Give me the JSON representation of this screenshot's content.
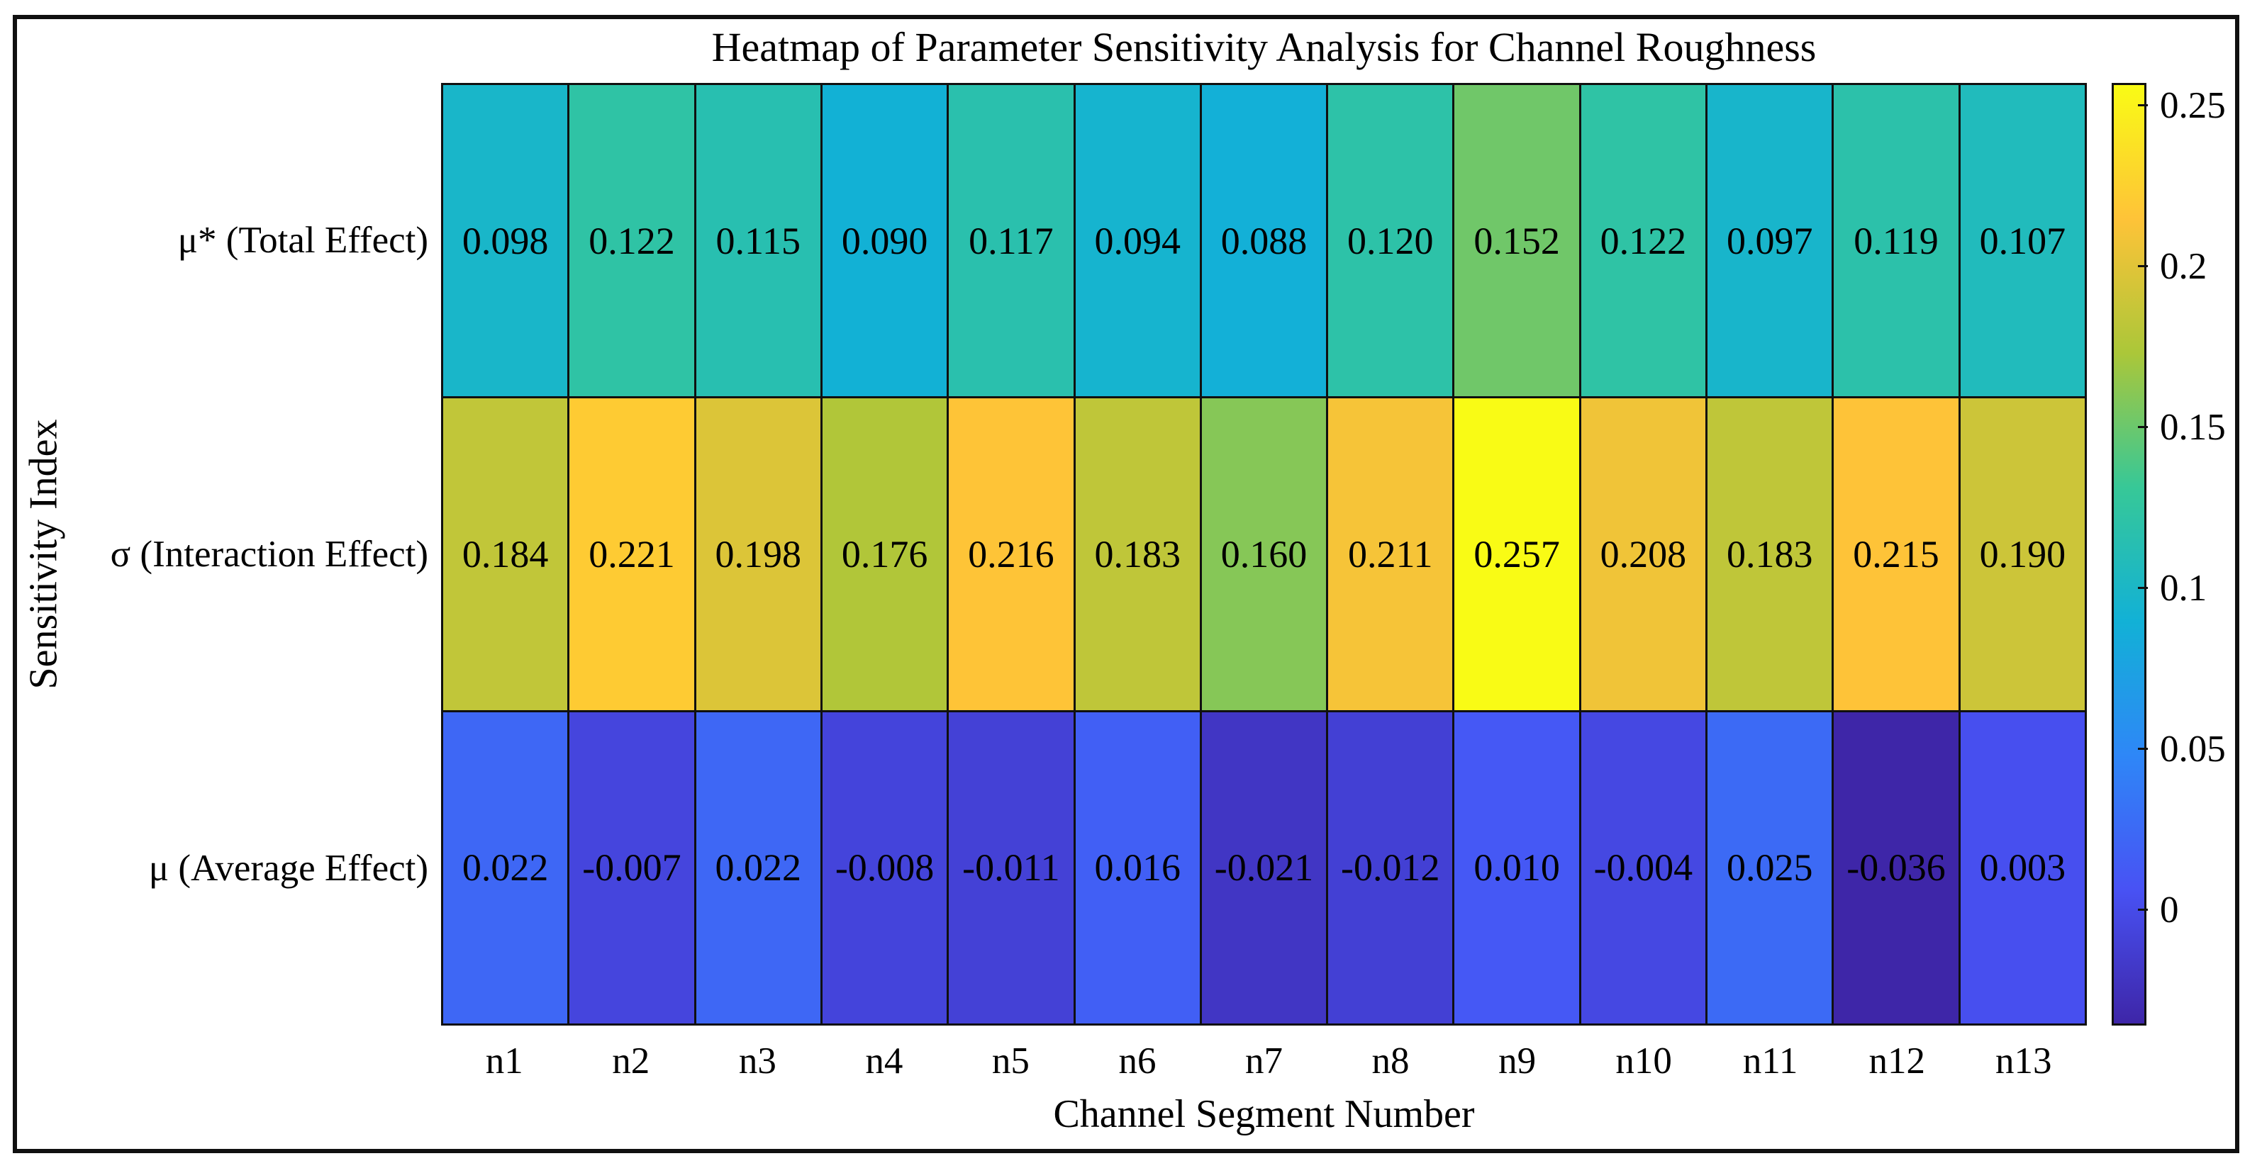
{
  "figure": {
    "background": "#ffffff",
    "frame_color": "#101010"
  },
  "chart_data": {
    "type": "heatmap",
    "title": "Heatmap of Parameter Sensitivity Analysis for Channel Roughness",
    "xlabel": "Channel Segment Number",
    "ylabel": "Sensitivity Index",
    "columns": [
      "n1",
      "n2",
      "n3",
      "n4",
      "n5",
      "n6",
      "n7",
      "n8",
      "n9",
      "n10",
      "n11",
      "n12",
      "n13"
    ],
    "rows": [
      "μ* (Total Effect)",
      "σ (Interaction Effect)",
      "μ (Average Effect)"
    ],
    "values": [
      [
        0.098,
        0.122,
        0.115,
        0.09,
        0.117,
        0.094,
        0.088,
        0.12,
        0.152,
        0.122,
        0.097,
        0.119,
        0.107
      ],
      [
        0.184,
        0.221,
        0.198,
        0.176,
        0.216,
        0.183,
        0.16,
        0.211,
        0.257,
        0.208,
        0.183,
        0.215,
        0.19
      ],
      [
        0.022,
        -0.007,
        0.022,
        -0.008,
        -0.011,
        0.016,
        -0.021,
        -0.012,
        0.01,
        -0.004,
        0.025,
        -0.036,
        0.003
      ]
    ],
    "value_decimals": 3,
    "colormap": "parula",
    "color_limits": [
      -0.036,
      0.257
    ],
    "grid_on": true,
    "grid_line_color": "#101010",
    "cell_text_color": "#000000",
    "colorbar": {
      "position": "right",
      "ticks": [
        0,
        0.05,
        0.1,
        0.15,
        0.2,
        0.25
      ],
      "tick_labels": [
        "0",
        "0.05",
        "0.1",
        "0.15",
        "0.2",
        "0.25"
      ]
    }
  }
}
